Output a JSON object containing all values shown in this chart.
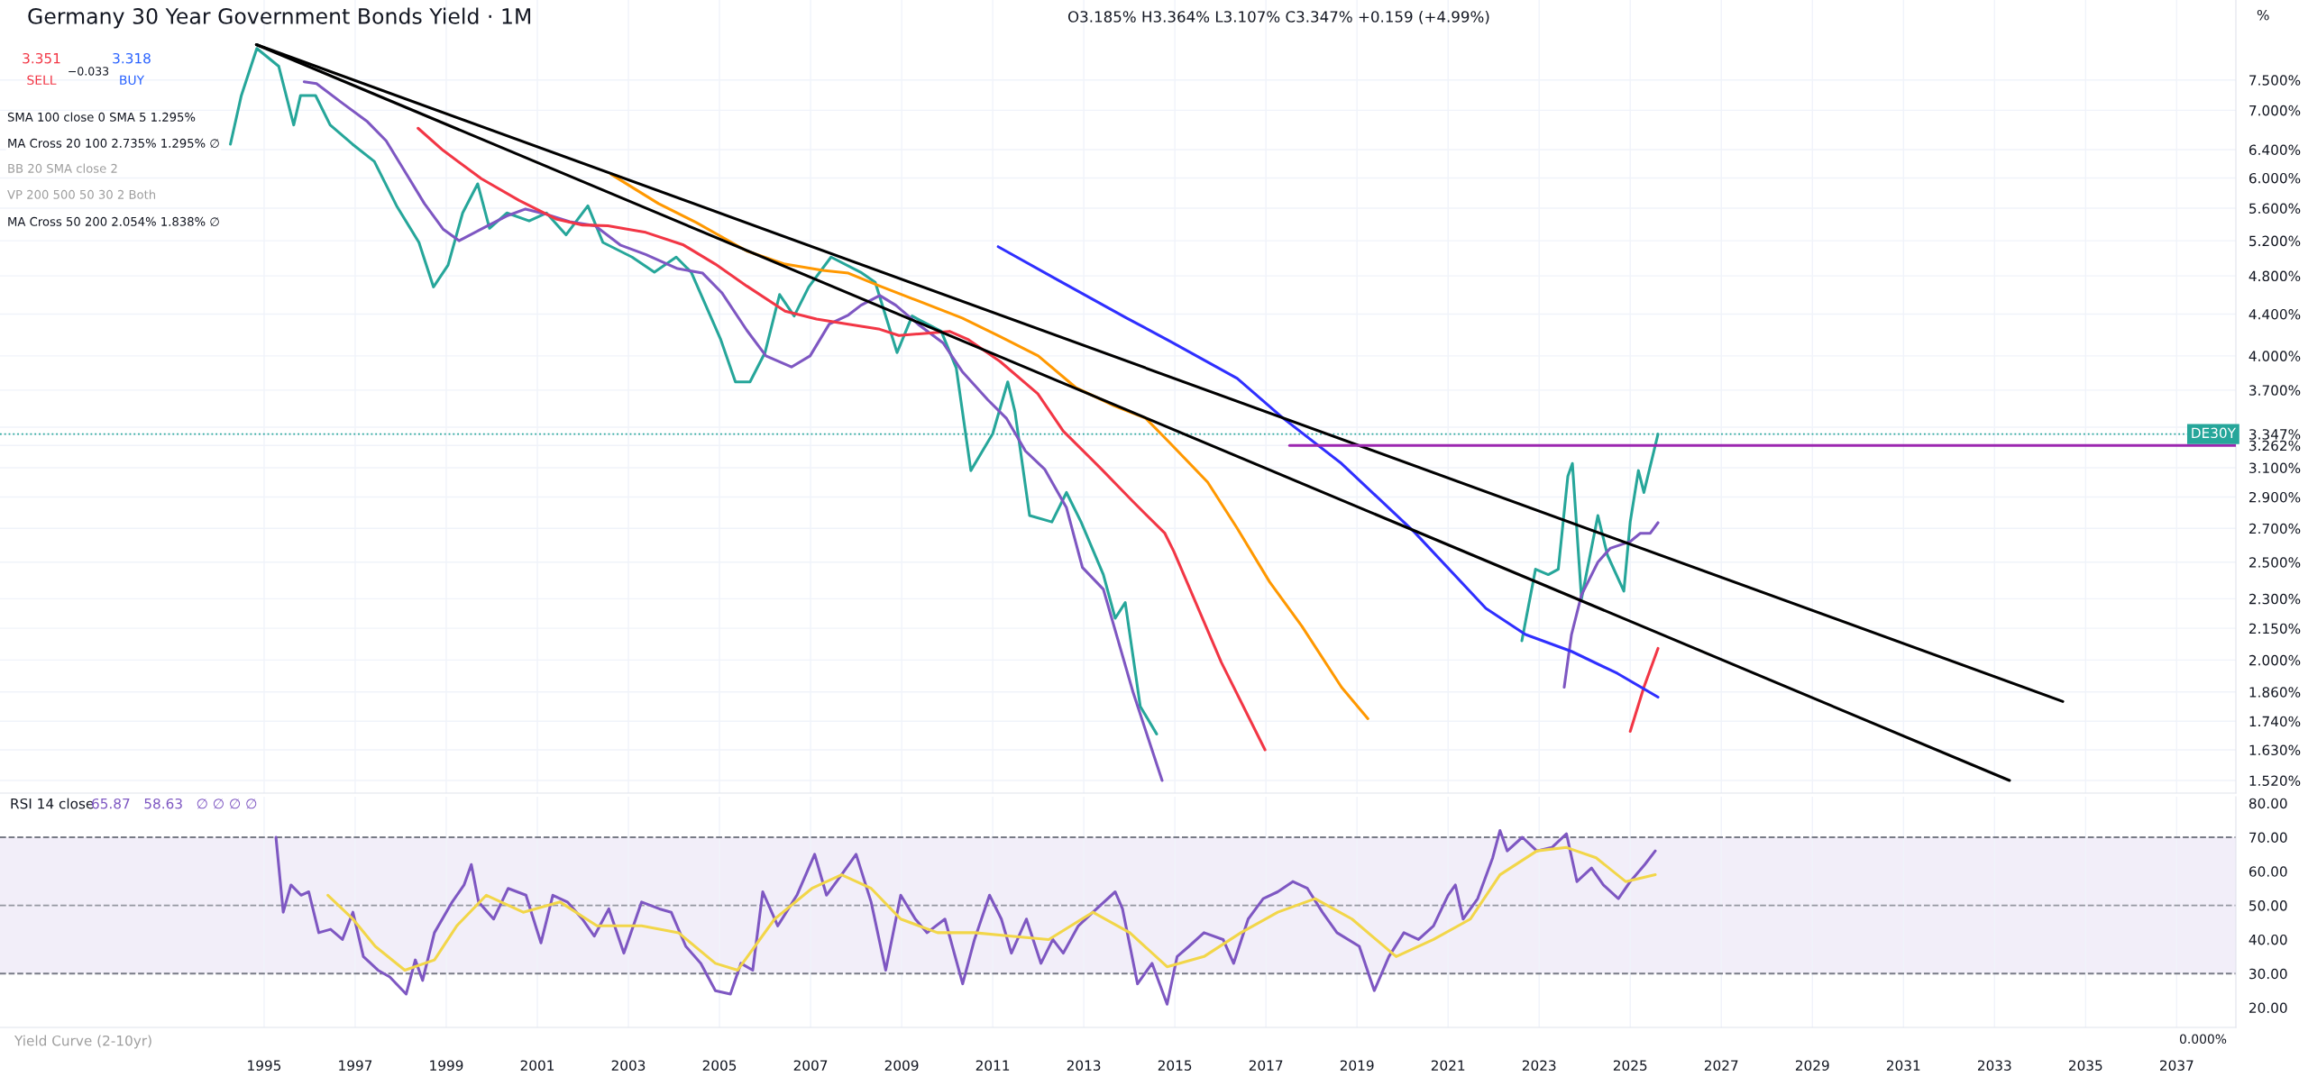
{
  "chart_data": [
    {
      "type": "line",
      "title": "Germany 30 Year Government Bonds Yield · 1M",
      "subtitle": "O3.185% H3.364% L3.107% C3.347% +0.159 (+4.99%)",
      "log": "y",
      "xlim": [
        1989.2,
        2038.3
      ],
      "xticks": [
        1995,
        1997,
        1999,
        2001,
        2003,
        2005,
        2007,
        2009,
        2011,
        2013,
        2015,
        2017,
        2019,
        2021,
        2023,
        2025,
        2027,
        2029,
        2031,
        2033,
        2035,
        2037
      ],
      "ylim": [
        1.477,
        9.0
      ],
      "yticks": [
        {
          "value": 1.52,
          "label": "1.520%"
        },
        {
          "value": 1.63,
          "label": "1.630%"
        },
        {
          "value": 1.74,
          "label": "1.740%"
        },
        {
          "value": 1.86,
          "label": "1.860%"
        },
        {
          "value": 2.0,
          "label": "2.000%"
        },
        {
          "value": 2.15,
          "label": "2.150%"
        },
        {
          "value": 2.3,
          "label": "2.300%"
        },
        {
          "value": 2.5,
          "label": "2.500%"
        },
        {
          "value": 2.7,
          "label": "2.700%"
        },
        {
          "value": 2.9,
          "label": "2.900%"
        },
        {
          "value": 3.1,
          "label": "3.100%"
        },
        {
          "value": 3.262,
          "label": "3.262%"
        },
        {
          "value": 3.347,
          "label": "3.347%"
        },
        {
          "value": 3.4,
          "label": null
        },
        {
          "value": 3.7,
          "label": "3.700%"
        },
        {
          "value": 4.0,
          "label": "4.000%"
        },
        {
          "value": 4.4,
          "label": "4.400%"
        },
        {
          "value": 4.8,
          "label": "4.800%"
        },
        {
          "value": 5.2,
          "label": "5.200%"
        },
        {
          "value": 5.6,
          "label": "5.600%"
        },
        {
          "value": 6.0,
          "label": "6.000%"
        },
        {
          "value": 6.4,
          "label": "6.400%"
        },
        {
          "value": 7.0,
          "label": "7.000%"
        },
        {
          "value": 7.5,
          "label": "7.500%"
        }
      ],
      "tick_labels": "y",
      "grid": true,
      "annotations": [
        "3.351",
        "SELL",
        "−0.033",
        "3.318",
        "BUY",
        "SMA 100 close 0 SMA 5 1.295%",
        "MA Cross 20 100 2.735% 1.295% ∅",
        "BB 20 SMA close 2",
        "VP 200 500 50 30 2 Both",
        "MA Cross 50 200 2.054% 1.838% ∅",
        "%"
      ],
      "ref_lines": [
        {
          "axis": "y",
          "value": 3.347,
          "label": "DE30Y",
          "color": "#26a69a",
          "line_style": "dotted"
        }
      ],
      "series": [
        {
          "color": "#26a69a",
          "x": [
            1994.26,
            1994.5,
            1994.84,
            1995.32,
            1995.65,
            1995.8,
            1996.13,
            1996.45,
            1996.94,
            1997.42,
            1997.91,
            1998.4,
            1998.72,
            1999.04,
            1999.36,
            1999.69,
            1999.95,
            2000.33,
            2000.82,
            2001.2,
            2001.63,
            2002.11,
            2002.44,
            2003.08,
            2003.57,
            2004.05,
            2004.38,
            2005.02,
            2005.35,
            2005.67,
            2006.0,
            2006.32,
            2006.64,
            2006.96,
            2007.45,
            2008.1,
            2008.42,
            2008.9,
            2009.23,
            2009.87,
            2010.2,
            2010.52,
            2011.0,
            2011.33,
            2011.49,
            2011.81,
            2012.3,
            2012.62,
            2012.94,
            2013.43,
            2013.69,
            2013.91,
            2014.24,
            2014.6,
            2014.9,
            2022.62,
            2022.92,
            2023.2,
            2023.42,
            2023.63,
            2023.73,
            2023.93,
            2024.29,
            2024.5,
            2024.86,
            2025.0,
            2025.18,
            2025.3,
            2025.61
          ],
          "values": [
            6.48,
            7.24,
            8.06,
            7.74,
            6.77,
            7.24,
            7.24,
            6.77,
            6.48,
            6.23,
            5.63,
            5.18,
            4.68,
            4.92,
            5.54,
            5.92,
            5.35,
            5.54,
            5.44,
            5.54,
            5.27,
            5.63,
            5.18,
            5.01,
            4.84,
            5.01,
            4.84,
            4.16,
            3.77,
            3.77,
            4.03,
            4.6,
            4.38,
            4.68,
            5.01,
            4.84,
            4.73,
            4.03,
            4.38,
            4.23,
            3.89,
            3.08,
            3.35,
            3.77,
            3.52,
            2.78,
            2.74,
            2.93,
            2.74,
            2.43,
            2.2,
            2.28,
            1.8,
            1.69,
            null,
            2.09,
            2.46,
            2.43,
            2.46,
            3.04,
            3.13,
            2.3,
            2.78,
            2.54,
            2.34,
            2.74,
            3.08,
            2.93,
            3.347
          ]
        },
        {
          "color": "#7e57c2",
          "x": [
            1995.88,
            1996.15,
            1996.71,
            1997.27,
            1997.68,
            1998.1,
            1998.52,
            1998.93,
            1999.28,
            1999.77,
            2000.32,
            2000.74,
            2001.16,
            2001.71,
            2002.27,
            2002.82,
            2003.38,
            2004.08,
            2004.63,
            2005.05,
            2005.6,
            2006.02,
            2006.58,
            2006.99,
            2007.41,
            2007.83,
            2008.11,
            2008.52,
            2008.87,
            2009.36,
            2009.91,
            2010.33,
            2010.89,
            2011.3,
            2011.72,
            2012.14,
            2012.62,
            2012.97,
            2013.43,
            2014.08,
            2014.72,
            2019.0,
            2023.55,
            2023.71,
            2023.93,
            2024.29,
            2024.56,
            2025.0,
            2025.22,
            2025.44,
            2025.61
          ],
          "values": [
            7.47,
            7.44,
            7.12,
            6.82,
            6.53,
            6.08,
            5.66,
            5.34,
            5.2,
            5.34,
            5.5,
            5.59,
            5.53,
            5.43,
            5.38,
            5.15,
            5.04,
            4.88,
            4.83,
            4.62,
            4.24,
            4.0,
            3.9,
            4.0,
            4.3,
            4.39,
            4.49,
            4.59,
            4.49,
            4.3,
            4.12,
            3.86,
            3.62,
            3.47,
            3.22,
            3.09,
            2.83,
            2.47,
            2.35,
            1.86,
            1.52,
            null,
            1.88,
            2.12,
            2.32,
            2.5,
            2.58,
            2.62,
            2.67,
            2.67,
            2.735
          ]
        },
        {
          "color": "#f23645",
          "x": [
            1998.38,
            1998.93,
            1999.77,
            2000.6,
            2001.43,
            2001.99,
            2002.55,
            2003.38,
            2004.21,
            2004.91,
            2005.6,
            2006.44,
            2007.13,
            2007.83,
            2008.52,
            2008.94,
            2009.5,
            2010.05,
            2010.47,
            2011.16,
            2011.99,
            2012.55,
            2013.39,
            2014.08,
            2014.78,
            2014.98,
            2016.02,
            2016.98,
            2020.0,
            2025.0,
            2025.3,
            2025.61
          ],
          "values": [
            6.72,
            6.39,
            5.99,
            5.7,
            5.46,
            5.39,
            5.38,
            5.3,
            5.15,
            4.93,
            4.69,
            4.43,
            4.35,
            4.3,
            4.25,
            4.19,
            4.21,
            4.23,
            4.15,
            3.95,
            3.67,
            3.37,
            3.09,
            2.87,
            2.67,
            2.56,
            1.99,
            1.63,
            null,
            1.7,
            1.88,
            2.054
          ]
        },
        {
          "color": "#ff9800",
          "x": [
            2002.62,
            2003.66,
            2004.49,
            2005.6,
            2006.44,
            2007.27,
            2007.83,
            2008.52,
            2009.22,
            2010.33,
            2011.16,
            2012.0,
            2012.83,
            2013.67,
            2014.36,
            2014.92,
            2015.72,
            2016.37,
            2017.08,
            2017.79,
            2018.66,
            2019.24
          ],
          "values": [
            6.05,
            5.66,
            5.42,
            5.08,
            4.93,
            4.86,
            4.83,
            4.69,
            4.56,
            4.36,
            4.18,
            4.0,
            3.72,
            3.57,
            3.47,
            3.27,
            3.0,
            2.7,
            2.39,
            2.16,
            1.88,
            1.75
          ]
        },
        {
          "color": "#2f2fff",
          "x": [
            2011.12,
            2012.41,
            2013.94,
            2014.92,
            2016.37,
            2017.38,
            2018.66,
            2020.25,
            2021.83,
            2022.7,
            2023.71,
            2024.72,
            2025.61
          ],
          "values": [
            5.13,
            4.76,
            4.36,
            4.13,
            3.8,
            3.47,
            3.13,
            2.68,
            2.25,
            2.12,
            2.04,
            1.94,
            1.838
          ]
        },
        {
          "color": "#000000",
          "x": [
            1994.83,
            2034.5
          ],
          "values": [
            8.13,
            1.82
          ]
        },
        {
          "color": "#000000",
          "x": [
            1994.83,
            2033.33
          ],
          "values": [
            8.13,
            1.52
          ]
        },
        {
          "color": "#9c27b0",
          "x": [
            2017.52,
            2038.3
          ],
          "values": [
            3.262,
            3.262
          ]
        }
      ]
    },
    {
      "type": "line",
      "title": "RSI 14 close",
      "xlim": [
        1989.2,
        2038.3
      ],
      "xticks": [
        1995,
        1997,
        1999,
        2001,
        2003,
        2005,
        2007,
        2009,
        2011,
        2013,
        2015,
        2017,
        2019,
        2021,
        2023,
        2025,
        2027,
        2029,
        2031,
        2033,
        2035,
        2037
      ],
      "ylim": [
        14.2,
        81.9
      ],
      "yticks": [
        {
          "value": 20,
          "label": "20.00"
        },
        {
          "value": 30,
          "label": "30.00"
        },
        {
          "value": 40,
          "label": "40.00"
        },
        {
          "value": 50,
          "label": "50.00"
        },
        {
          "value": 60,
          "label": "60.00"
        },
        {
          "value": 70,
          "label": "70.00"
        },
        {
          "value": 80,
          "label": "80.00"
        }
      ],
      "grid": "x",
      "annotations": [
        "65.87   58.63   ∅ ∅ ∅ ∅",
        "Yield Curve (2-10yr)",
        "0.000%"
      ],
      "bands": [
        {
          "axis": "y",
          "from": 30,
          "to": 70,
          "color": "#ede7f6"
        }
      ],
      "ref_lines": [
        {
          "axis": "y",
          "value": 30,
          "color": "#787b86",
          "line_style": "dashed"
        },
        {
          "axis": "y",
          "value": 50,
          "color": "#9598a1",
          "line_style": "dashed"
        },
        {
          "axis": "y",
          "value": 70,
          "color": "#787b86",
          "line_style": "dashed"
        }
      ],
      "series": [
        {
          "color": "#7e57c2",
          "x": [
            1995.26,
            1995.42,
            1995.59,
            1995.81,
            1995.98,
            1996.2,
            1996.46,
            1996.72,
            1996.95,
            1997.18,
            1997.5,
            1997.76,
            1998.12,
            1998.32,
            1998.48,
            1998.74,
            1999.13,
            1999.39,
            1999.55,
            1999.71,
            2000.04,
            2000.36,
            2000.75,
            2001.08,
            2001.34,
            2001.66,
            2001.99,
            2002.25,
            2002.57,
            2002.9,
            2003.29,
            2003.68,
            2003.94,
            2004.26,
            2004.59,
            2004.91,
            2005.24,
            2005.47,
            2005.73,
            2005.95,
            2006.28,
            2006.7,
            2007.09,
            2007.35,
            2007.68,
            2008.0,
            2008.33,
            2008.65,
            2008.98,
            2009.3,
            2009.56,
            2009.95,
            2010.34,
            2010.6,
            2010.93,
            2011.19,
            2011.41,
            2011.74,
            2012.06,
            2012.32,
            2012.55,
            2012.88,
            2013.2,
            2013.69,
            2013.85,
            2014.18,
            2014.5,
            2014.83,
            2015.05,
            2015.31,
            2015.64,
            2016.06,
            2016.29,
            2016.61,
            2016.94,
            2017.26,
            2017.59,
            2017.91,
            2018.24,
            2018.56,
            2019.05,
            2019.38,
            2019.7,
            2020.03,
            2020.35,
            2020.68,
            2021.0,
            2021.16,
            2021.33,
            2021.65,
            2021.98,
            2022.14,
            2022.3,
            2022.63,
            2022.95,
            2023.28,
            2023.6,
            2023.83,
            2024.15,
            2024.41,
            2024.74,
            2025.0,
            2025.32,
            2025.55
          ],
          "values": [
            70,
            48,
            56,
            53,
            54,
            42,
            43,
            40,
            48,
            35,
            31,
            29,
            24,
            34,
            28,
            42,
            51,
            56,
            62,
            51,
            46,
            55,
            53,
            39,
            53,
            51,
            46,
            41,
            49,
            36,
            51,
            49,
            48,
            38,
            33,
            25,
            24,
            33,
            31,
            54,
            44,
            53,
            65,
            53,
            59,
            65,
            51,
            31,
            53,
            46,
            42,
            46,
            27,
            40,
            53,
            46,
            36,
            46,
            33,
            40,
            36,
            44,
            48,
            54,
            49,
            27,
            33,
            21,
            35,
            38,
            42,
            40,
            33,
            46,
            52,
            54,
            57,
            55,
            48,
            42,
            38,
            25,
            35,
            42,
            40,
            44,
            53,
            56,
            46,
            52,
            64,
            72,
            66,
            70,
            66,
            67,
            71,
            57,
            61,
            56,
            52,
            57,
            62,
            66
          ]
        },
        {
          "color": "#f2d649",
          "x": [
            1996.4,
            1996.95,
            1997.44,
            1998.09,
            1998.74,
            1999.23,
            1999.88,
            2000.69,
            2001.5,
            2002.31,
            2003.29,
            2004.1,
            2004.91,
            2005.4,
            2006.21,
            2007.03,
            2007.68,
            2008.33,
            2008.98,
            2009.79,
            2010.6,
            2011.41,
            2012.23,
            2013.2,
            2014.01,
            2014.83,
            2015.64,
            2016.45,
            2017.26,
            2018.08,
            2018.89,
            2019.86,
            2020.68,
            2021.49,
            2022.14,
            2022.95,
            2023.6,
            2024.25,
            2024.9,
            2025.55
          ],
          "values": [
            53,
            46,
            38,
            31,
            34,
            44,
            53,
            48,
            51,
            44,
            44,
            42,
            33,
            31,
            46,
            55,
            59,
            55,
            46,
            42,
            42,
            41,
            40,
            48,
            42,
            32,
            35,
            42,
            48,
            52,
            46,
            35,
            40,
            46,
            59,
            66,
            67,
            64,
            57,
            59
          ]
        }
      ]
    }
  ]
}
